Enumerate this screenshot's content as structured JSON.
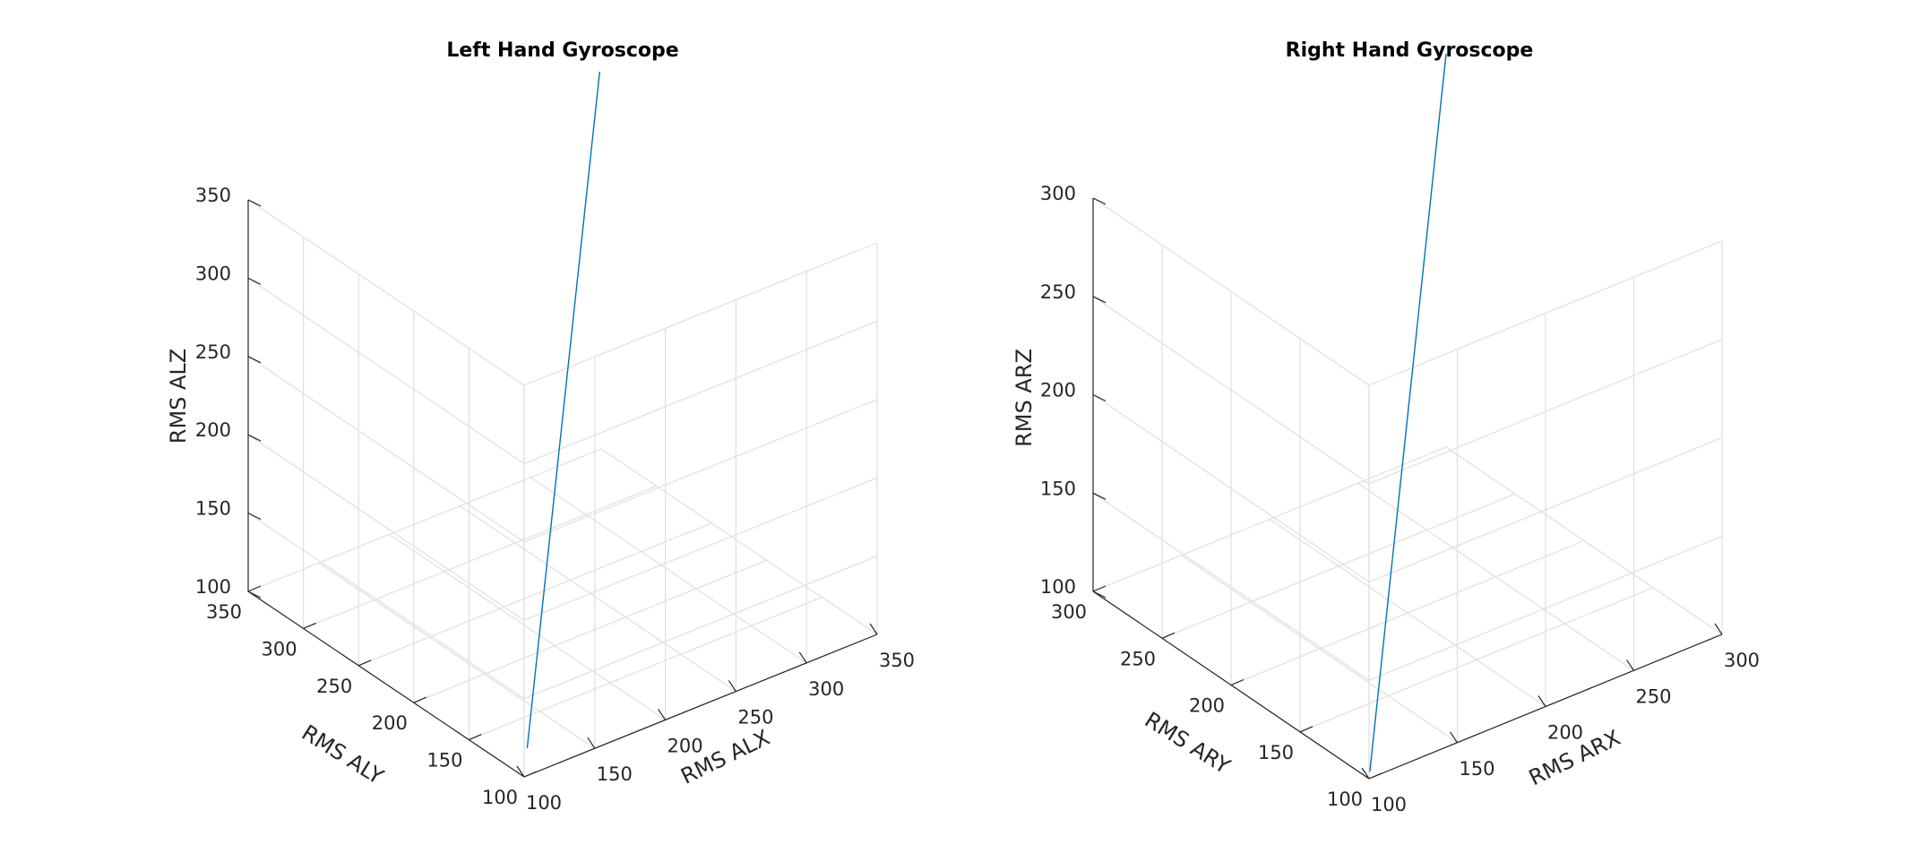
{
  "chart_data": [
    {
      "type": "line3d",
      "title": "Left Hand Gyroscope",
      "xlabel": "RMS ALX",
      "ylabel": "RMS ALY",
      "zlabel": "RMS ALZ",
      "xticks": [
        100,
        150,
        200,
        250,
        300,
        350
      ],
      "yticks": [
        100,
        150,
        200,
        250,
        300,
        350
      ],
      "zticks": [
        100,
        150,
        200,
        250,
        300,
        350
      ],
      "xlim": [
        100,
        350
      ],
      "ylim": [
        100,
        350
      ],
      "zlim": [
        100,
        350
      ],
      "grid": true,
      "series": [
        {
          "x": [
            110,
            345
          ],
          "y": [
            110,
            345
          ],
          "z": [
            110,
            345
          ],
          "color": "#0072bd"
        }
      ]
    },
    {
      "type": "line3d",
      "title": "Right Hand Gyroscope",
      "xlabel": "RMS ARX",
      "ylabel": "RMS ARY",
      "zlabel": "RMS ARZ",
      "xticks": [
        100,
        150,
        200,
        250,
        300
      ],
      "yticks": [
        100,
        150,
        200,
        250,
        300
      ],
      "zticks": [
        100,
        150,
        200,
        250,
        300
      ],
      "xlim": [
        100,
        300
      ],
      "ylim": [
        100,
        300
      ],
      "zlim": [
        100,
        300
      ],
      "grid": true,
      "series": [
        {
          "x": [
            102,
            300
          ],
          "y": [
            102,
            300
          ],
          "z": [
            102,
            300
          ],
          "color": "#0072bd"
        }
      ]
    }
  ]
}
